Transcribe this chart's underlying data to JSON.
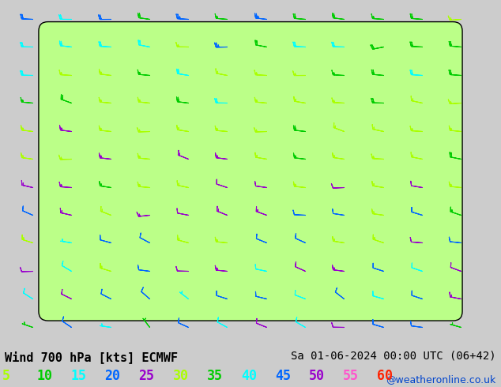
{
  "title_left": "Wind 700 hPa [kts] ECMWF",
  "title_right": "Sa 01-06-2024 00:00 UTC (06+42)",
  "credit": "@weatheronline.co.uk",
  "legend_values": [
    5,
    10,
    15,
    20,
    25,
    30,
    35,
    40,
    45,
    50,
    55,
    60
  ],
  "legend_colors": [
    "#aaff00",
    "#00cc00",
    "#00ffff",
    "#0066ff",
    "#9900cc",
    "#aaff00",
    "#00cc00",
    "#00ffff",
    "#0066ff",
    "#9900cc",
    "#ff55cc",
    "#ff2200"
  ],
  "bg_sea": "#cccccc",
  "bg_land": "#bbff88",
  "lon_min": 17.5,
  "lon_max": 32.5,
  "lat_min": 33.5,
  "lat_max": 44.5,
  "font_size_title": 11,
  "font_size_legend": 12,
  "speed_thresholds": [
    5,
    10,
    15,
    20,
    25,
    30,
    35,
    40,
    45,
    50,
    55,
    60
  ],
  "speed_colors": [
    "#aaff00",
    "#00cc00",
    "#00ffff",
    "#0066ff",
    "#9900cc",
    "#aaff00",
    "#00cc00",
    "#00ffff",
    "#0066ff",
    "#9900cc",
    "#ff55cc",
    "#ff2200"
  ]
}
